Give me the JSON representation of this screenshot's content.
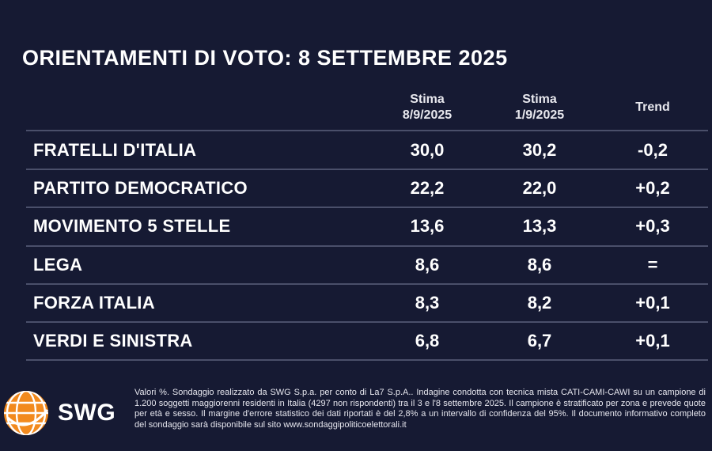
{
  "chart_data": {
    "type": "table",
    "title": "ORIENTAMENTI DI VOTO: 8 SETTEMBRE 2025",
    "columns": [
      {
        "line1": "Stima",
        "line2": "8/9/2025"
      },
      {
        "line1": "Stima",
        "line2": "1/9/2025"
      },
      {
        "line1": "Trend",
        "line2": ""
      }
    ],
    "rows": [
      {
        "party": "FRATELLI D'ITALIA",
        "stima_current": "30,0",
        "stima_previous": "30,2",
        "trend": "-0,2"
      },
      {
        "party": "PARTITO DEMOCRATICO",
        "stima_current": "22,2",
        "stima_previous": "22,0",
        "trend": "+0,2"
      },
      {
        "party": "MOVIMENTO 5 STELLE",
        "stima_current": "13,6",
        "stima_previous": "13,3",
        "trend": "+0,3"
      },
      {
        "party": "LEGA",
        "stima_current": "8,6",
        "stima_previous": "8,6",
        "trend": "="
      },
      {
        "party": "FORZA ITALIA",
        "stima_current": "8,3",
        "stima_previous": "8,2",
        "trend": "+0,1"
      },
      {
        "party": "VERDI E SINISTRA",
        "stima_current": "6,8",
        "stima_previous": "6,7",
        "trend": "+0,1"
      }
    ]
  },
  "logo": {
    "text": "SWG",
    "icon": "swg-globe-icon"
  },
  "footnote": "Valori %. Sondaggio realizzato da SWG S.p.a. per conto di La7 S.p.A.. Indagine condotta con tecnica mista CATI-CAMI-CAWI su un campione di 1.200 soggetti maggiorenni residenti in Italia (4297 non rispondenti) tra il 3 e l'8 settembre 2025. Il campione è stratificato per zona e prevede quote per età e sesso. Il margine d'errore statistico dei dati riportati è del 2,8% a un intervallo di confidenza del 95%. Il documento informativo completo del sondaggio sarà disponibile sul sito www.sondaggipoliticoelettorali.it",
  "colors": {
    "background": "#161a33",
    "text": "#ffffff",
    "rule": "#4a4f6a",
    "logo_orange": "#f28a1e"
  }
}
